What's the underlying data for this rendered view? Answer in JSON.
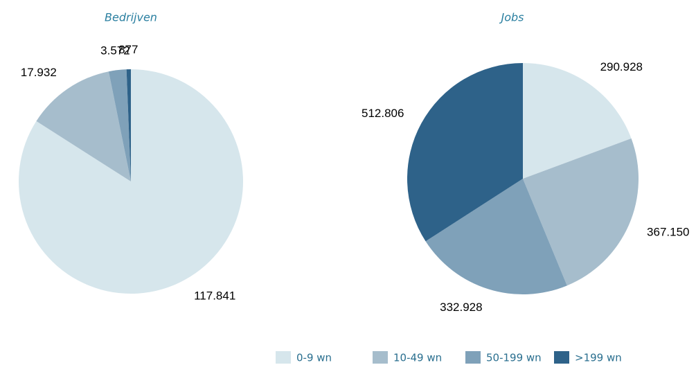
{
  "chart_data": [
    {
      "type": "pie",
      "title": "Bedrijven",
      "values": [
        117841,
        17932,
        3572,
        877
      ],
      "value_labels": [
        "117.841",
        "17.932",
        "3.572",
        "877"
      ]
    },
    {
      "type": "pie",
      "title": "Jobs",
      "values": [
        290928,
        367150,
        332928,
        512806
      ],
      "value_labels": [
        "290.928",
        "367.150",
        "332.928",
        "512.806"
      ]
    }
  ],
  "legend": {
    "labels": [
      "0-9 wn",
      "10-49 wn",
      "50-199 wn",
      ">199 wn"
    ],
    "colors": [
      "#d6e6ec",
      "#a6bdcc",
      "#7fa1b9",
      "#2e6289"
    ]
  }
}
